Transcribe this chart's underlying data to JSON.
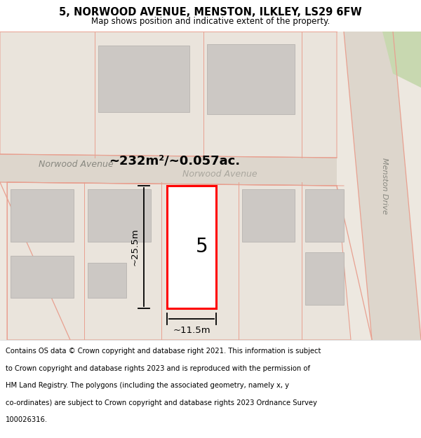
{
  "title": "5, NORWOOD AVENUE, MENSTON, ILKLEY, LS29 6FW",
  "subtitle": "Map shows position and indicative extent of the property.",
  "footer_line1": "Contains OS data © Crown copyright and database right 2021. This information is subject",
  "footer_line2": "to Crown copyright and database rights 2023 and is reproduced with the permission of",
  "footer_line3": "HM Land Registry. The polygons (including the associated geometry, namely x, y",
  "footer_line4": "co-ordinates) are subject to Crown copyright and database rights 2023 Ordnance Survey",
  "footer_line5": "100026316.",
  "map_bg": "#ede8e0",
  "road_fill": "#ddd6cc",
  "road_outline": "#e8a090",
  "building_fill": "#ccc8c4",
  "building_edge": "#b8b4b0",
  "plot_outline": "#ff0000",
  "plot_fill": "#ffffff",
  "green_fill": "#c8d8b0",
  "area_text": "~232m²/~0.057ac.",
  "dim_width": "~11.5m",
  "dim_height": "~25.5m",
  "label_5": "5",
  "road_name_norwood": "Norwood Avenue",
  "road_name_menston": "Menston Drive"
}
